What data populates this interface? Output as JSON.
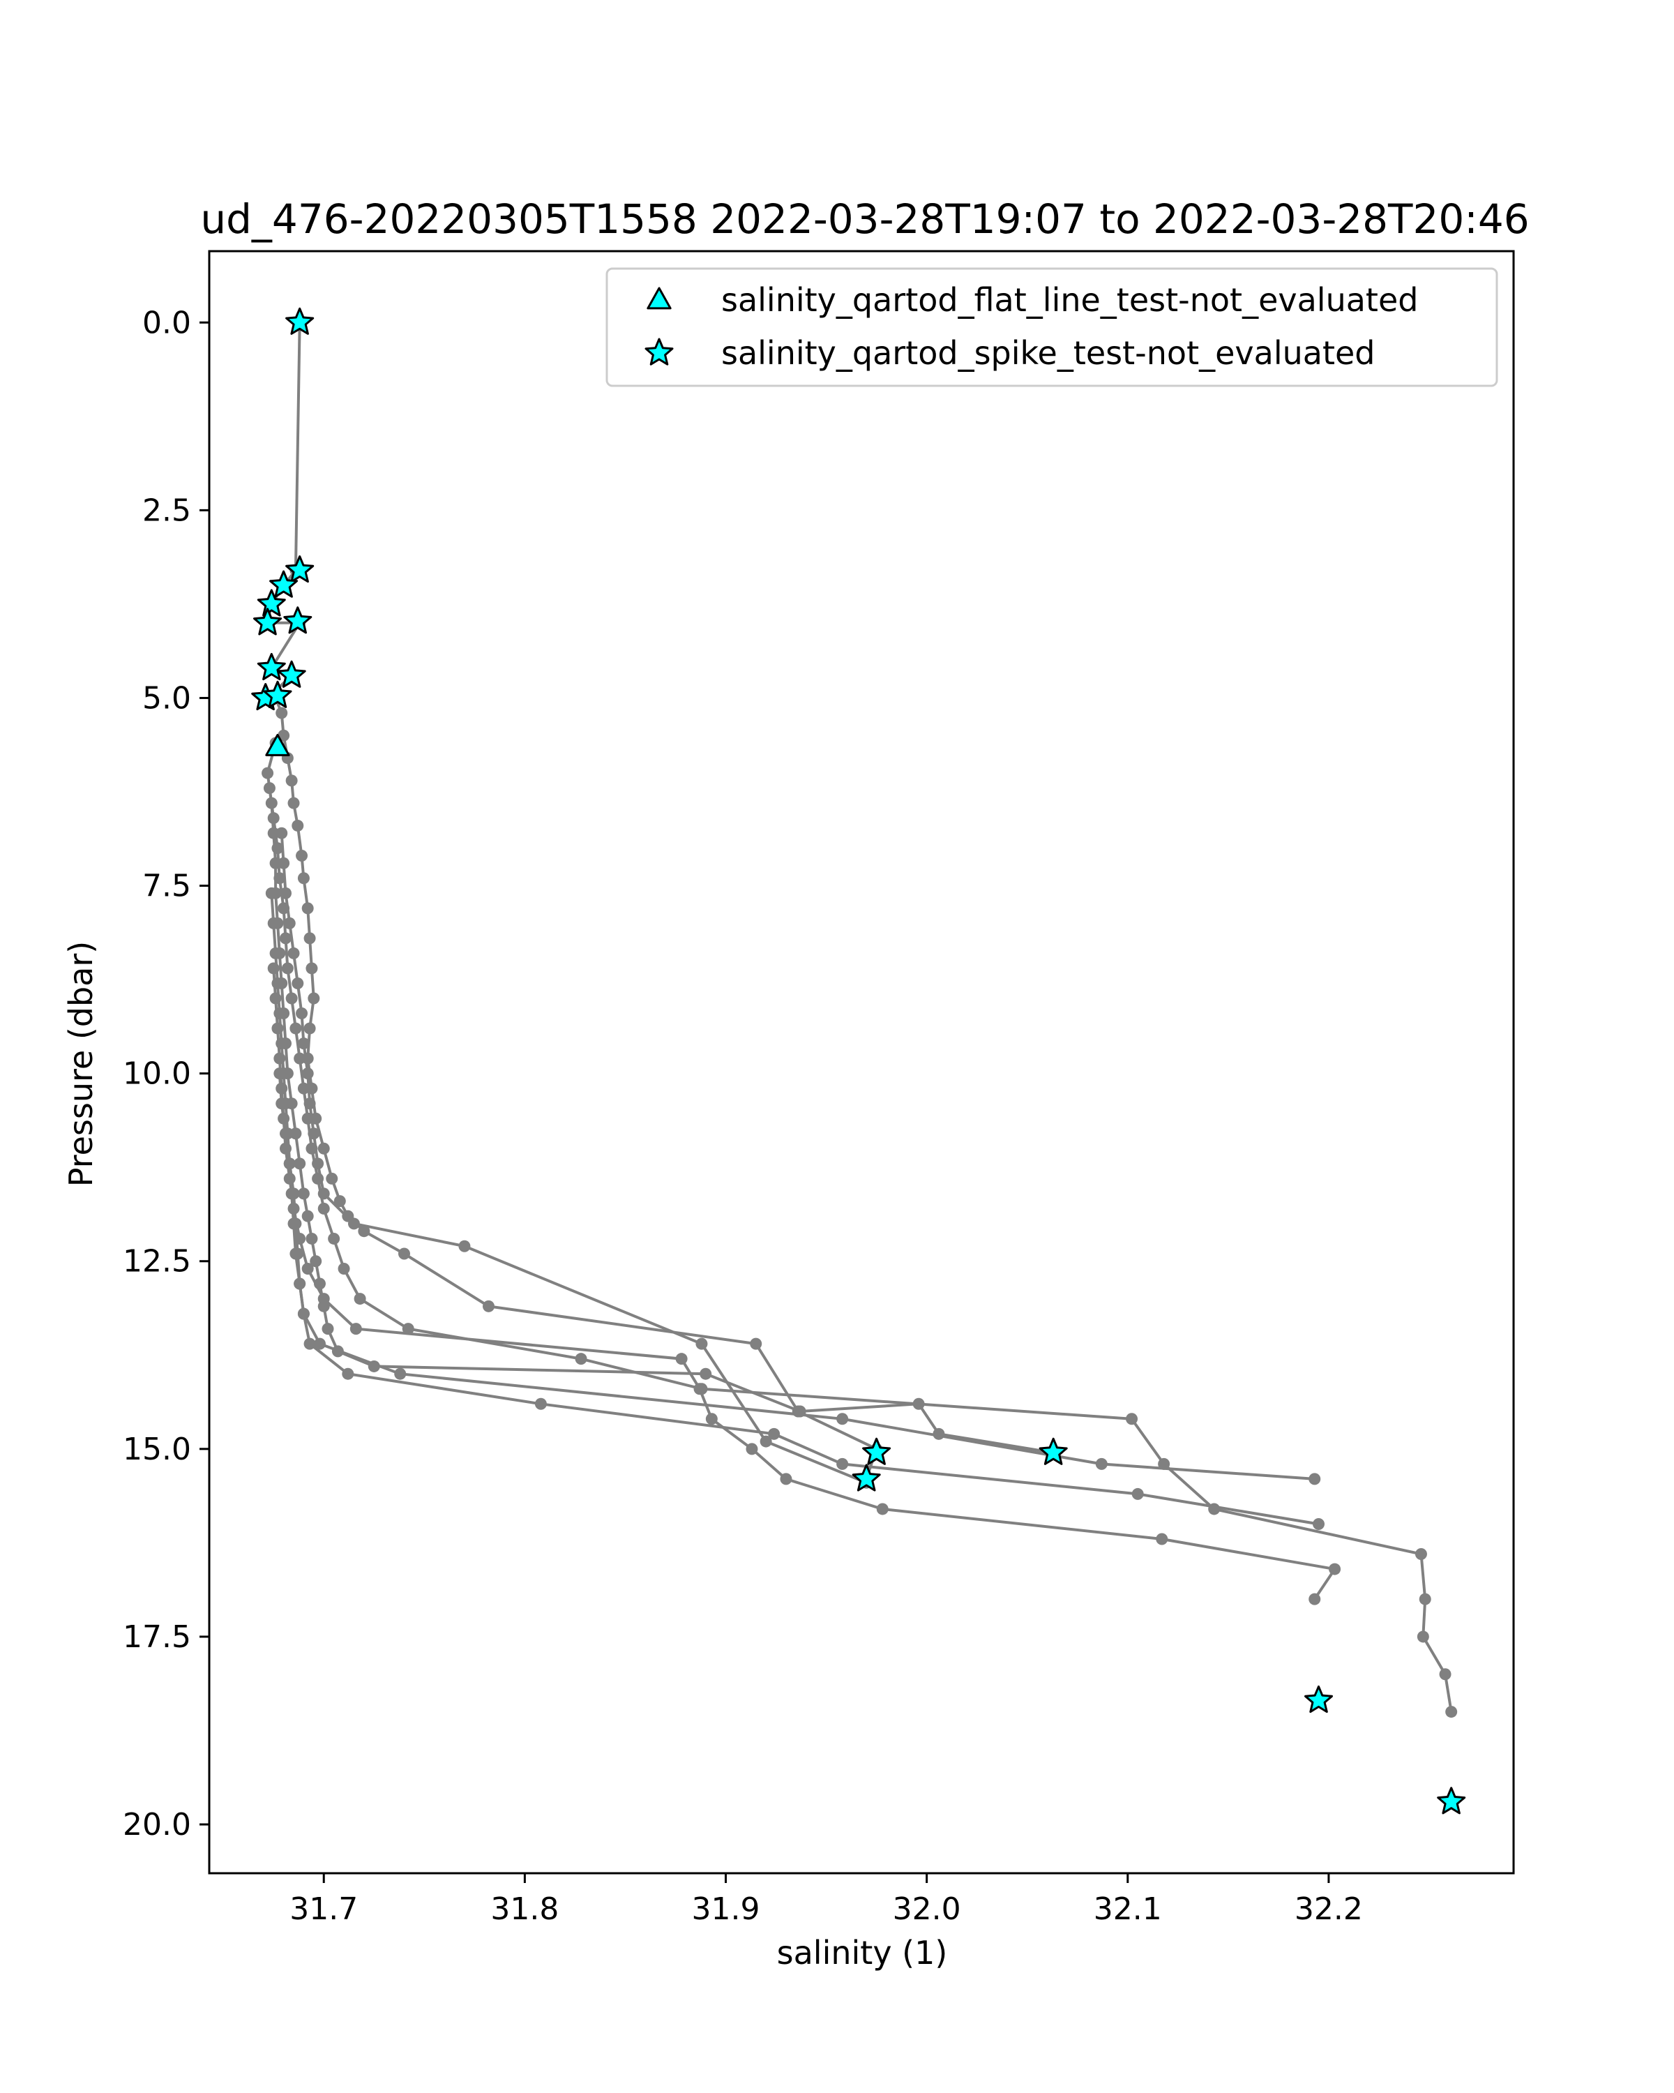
{
  "chart_data": {
    "type": "scatter",
    "title": "ud_476-20220305T1558 2022-03-28T19:07 to 2022-03-28T20:46",
    "xlabel": "salinity (1)",
    "ylabel": "Pressure (dbar)",
    "xlim": [
      31.643,
      32.292
    ],
    "ylim": [
      20.65,
      -0.95
    ],
    "y_inverted": true,
    "grid": false,
    "legend_position": "top-right",
    "x_ticks": [
      "31.7",
      "31.8",
      "31.9",
      "32.0",
      "32.1",
      "32.2"
    ],
    "y_ticks": [
      "0.0",
      "2.5",
      "5.0",
      "7.5",
      "10.0",
      "12.5",
      "15.0",
      "17.5",
      "20.0"
    ],
    "colors": {
      "profile": "#808080",
      "marker_fill": "#00ffff",
      "marker_edge": "#000000"
    },
    "series": [
      {
        "type": "line",
        "x": [
          31.688,
          31.686,
          31.68,
          31.674,
          31.672,
          31.688,
          31.674,
          31.684,
          31.672,
          31.676,
          31.679,
          31.68,
          31.682,
          31.684,
          31.685,
          31.687,
          31.689,
          31.69,
          31.692,
          31.693,
          31.694,
          31.695,
          31.693,
          31.692,
          31.694,
          31.696,
          31.7,
          31.704,
          31.708,
          31.712,
          31.72,
          31.74,
          31.782,
          31.915,
          31.936,
          31.975,
          31.97
        ],
        "y": [
          0.0,
          3.3,
          3.5,
          3.75,
          4.0,
          4.0,
          4.6,
          4.7,
          5.0,
          5.0,
          5.2,
          5.5,
          5.8,
          6.1,
          6.4,
          6.7,
          7.1,
          7.4,
          7.8,
          8.2,
          8.6,
          9.0,
          9.4,
          9.8,
          10.2,
          10.6,
          11.0,
          11.4,
          11.7,
          11.9,
          12.1,
          12.4,
          13.1,
          13.6,
          14.5,
          15.0,
          15.4
        ]
      },
      {
        "type": "line",
        "x": [
          31.676,
          31.672,
          31.674,
          31.675,
          31.676,
          31.676,
          31.677,
          31.678,
          31.679,
          31.68,
          31.681,
          31.682,
          31.684,
          31.686,
          31.688,
          31.69,
          31.692,
          31.694,
          31.696,
          31.698,
          31.7,
          31.702,
          31.707,
          31.725,
          31.89,
          31.937,
          31.996,
          32.006,
          32.063
        ],
        "y": [
          5.6,
          6.0,
          6.4,
          6.8,
          7.2,
          7.6,
          8.0,
          8.4,
          8.8,
          9.2,
          9.6,
          10.0,
          10.4,
          10.8,
          11.2,
          11.6,
          11.9,
          12.2,
          12.5,
          12.8,
          13.1,
          13.4,
          13.7,
          13.9,
          14.0,
          14.5,
          14.4,
          14.8,
          15.05
        ]
      },
      {
        "type": "line",
        "x": [
          31.673,
          31.675,
          31.677,
          31.678,
          31.68,
          31.681,
          31.682,
          31.684,
          31.686,
          31.688,
          31.69,
          31.692,
          31.694,
          31.697,
          31.7,
          31.705,
          31.71,
          31.718,
          31.742,
          31.828,
          31.888,
          32.102,
          32.118,
          32.143,
          32.246,
          32.248,
          32.247,
          32.258,
          32.261
        ],
        "y": [
          6.2,
          6.6,
          7.0,
          7.4,
          7.8,
          8.2,
          8.6,
          9.0,
          9.4,
          9.8,
          10.2,
          10.6,
          11.0,
          11.4,
          11.8,
          12.2,
          12.6,
          13.0,
          13.4,
          13.8,
          14.2,
          14.6,
          15.2,
          15.8,
          16.4,
          17.0,
          17.5,
          18.0,
          18.5
        ]
      },
      {
        "type": "line",
        "x": [
          31.679,
          31.68,
          31.681,
          31.683,
          31.685,
          31.687,
          31.689,
          31.69,
          31.692,
          31.693,
          31.695,
          31.697,
          31.7,
          31.715,
          31.77,
          31.888,
          31.92,
          31.97
        ],
        "y": [
          6.8,
          7.2,
          7.6,
          8.0,
          8.4,
          8.8,
          9.2,
          9.6,
          10.0,
          10.4,
          10.8,
          11.2,
          11.6,
          12.0,
          12.3,
          13.6,
          14.9,
          15.45
        ]
      },
      {
        "type": "line",
        "x": [
          31.674,
          31.675,
          31.676,
          31.677,
          31.678,
          31.679,
          31.68,
          31.681,
          31.682,
          31.683,
          31.684,
          31.685,
          31.686,
          31.688,
          31.69,
          31.698,
          31.738,
          31.958,
          32.087,
          32.193
        ],
        "y": [
          7.6,
          8.0,
          8.4,
          8.8,
          9.2,
          9.6,
          10.0,
          10.4,
          10.8,
          11.2,
          11.6,
          12.0,
          12.4,
          12.8,
          13.2,
          13.6,
          14.0,
          14.6,
          15.2,
          15.4
        ]
      },
      {
        "type": "line",
        "x": [
          31.675,
          31.676,
          31.677,
          31.678,
          31.679,
          31.68,
          31.681,
          31.683,
          31.685,
          31.688,
          31.692,
          31.7,
          31.716,
          31.878,
          31.887,
          31.893,
          31.913,
          31.93,
          31.978,
          32.117,
          32.203,
          32.193
        ],
        "y": [
          8.6,
          9.0,
          9.4,
          9.8,
          10.2,
          10.6,
          11.0,
          11.4,
          11.8,
          12.2,
          12.6,
          13.0,
          13.4,
          13.8,
          14.2,
          14.6,
          15.0,
          15.4,
          15.8,
          16.2,
          16.6,
          17.0
        ]
      },
      {
        "type": "line",
        "x": [
          31.678,
          31.679,
          31.681,
          31.683,
          31.685,
          31.686,
          31.687,
          31.688,
          31.69,
          31.693,
          31.712,
          31.808,
          31.924,
          31.958,
          32.105,
          32.195
        ],
        "y": [
          10.0,
          10.4,
          10.8,
          11.2,
          11.6,
          12.0,
          12.4,
          12.8,
          13.2,
          13.6,
          14.0,
          14.4,
          14.8,
          15.2,
          15.6,
          16.0
        ]
      }
    ],
    "markers": [
      {
        "name": "salinity_qartod_flat_line_test-not_evaluated",
        "shape": "triangle",
        "x": [
          31.677
        ],
        "y": [
          5.65
        ]
      },
      {
        "name": "salinity_qartod_spike_test-not_evaluated",
        "shape": "star",
        "x": [
          31.688,
          31.688,
          31.68,
          31.674,
          31.672,
          31.687,
          31.674,
          31.684,
          31.671,
          31.677,
          31.975,
          31.97,
          32.063,
          32.195,
          32.261
        ],
        "y": [
          0.0,
          3.3,
          3.5,
          3.75,
          4.0,
          3.98,
          4.6,
          4.7,
          5.0,
          4.97,
          15.05,
          15.4,
          15.05,
          18.35,
          19.7
        ]
      }
    ]
  }
}
